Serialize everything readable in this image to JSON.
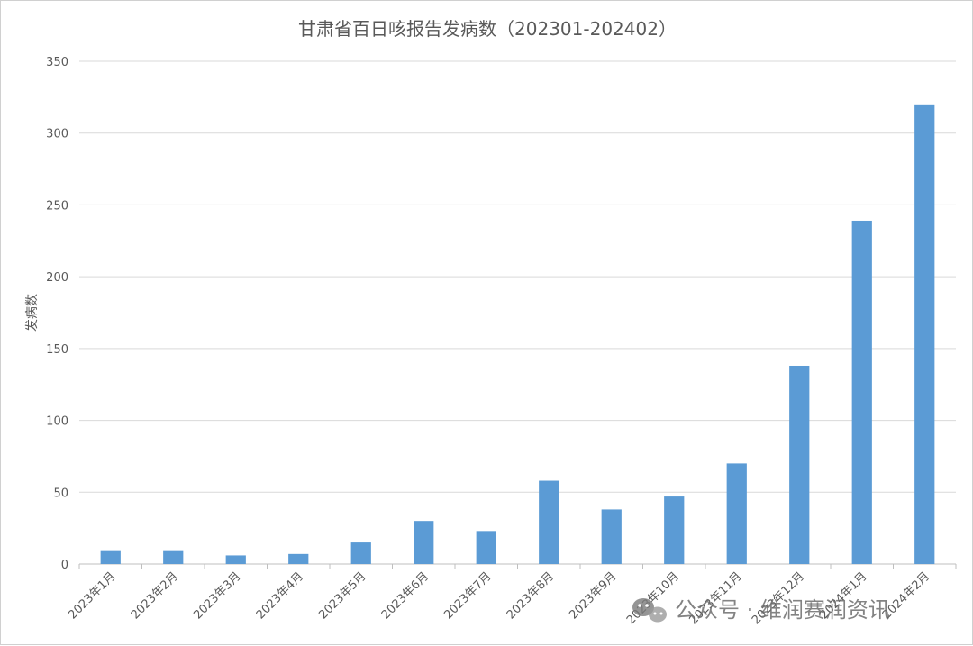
{
  "chart_data": {
    "type": "bar",
    "title": "甘肃省百日咳报告发病数（202301-202402）",
    "xlabel": "",
    "ylabel": "发病数",
    "ylim": [
      0,
      350
    ],
    "yticks": [
      0,
      50,
      100,
      150,
      200,
      250,
      300,
      350
    ],
    "grid": true,
    "categories": [
      "2023年1月",
      "2023年2月",
      "2023年3月",
      "2023年4月",
      "2023年5月",
      "2023年6月",
      "2023年7月",
      "2023年8月",
      "2023年9月",
      "2023年10月",
      "2023年11月",
      "2023年12月",
      "2024年1月",
      "2024年2月"
    ],
    "values": [
      9,
      9,
      6,
      7,
      15,
      30,
      23,
      58,
      38,
      47,
      70,
      138,
      239,
      320
    ],
    "bar_color": "#5b9bd5"
  },
  "watermark": {
    "icon": "wechat-icon",
    "text": "公众号 · 维润赛润资讯"
  }
}
